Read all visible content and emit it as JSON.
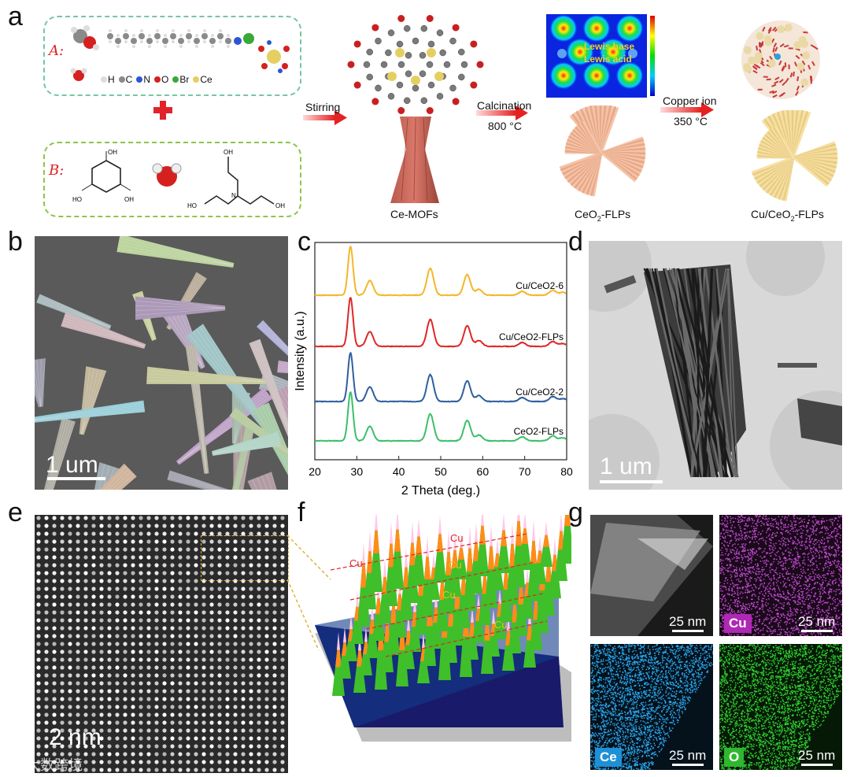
{
  "panel_labels": {
    "a": "a",
    "b": "b",
    "c": "c",
    "d": "d",
    "e": "e",
    "f": "f",
    "g": "g"
  },
  "panel_a": {
    "box_a_label": "A:",
    "box_b_label": "B:",
    "legend_elements": [
      "H",
      "C",
      "N",
      "O",
      "Br",
      "Ce"
    ],
    "legend_colors": [
      "#e8e8e8",
      "#8a8a8a",
      "#2e55d6",
      "#d62020",
      "#3aa836",
      "#e6cf62"
    ],
    "steps": [
      {
        "label": "Stirring",
        "temp": ""
      },
      {
        "label": "Calcination",
        "temp": "800 °C"
      },
      {
        "label": "Copper ion",
        "temp": "350 °C"
      }
    ],
    "products": [
      "Ce-MOFs",
      "CeO2-FLPs",
      "Cu/CeO2-FLPs"
    ],
    "map_labels": {
      "base": "Lewis base",
      "acid": "Lewis acid"
    },
    "plus_color": "#e0242a"
  },
  "panel_b": {
    "scale": "1 um"
  },
  "panel_c": {
    "chart_data": {
      "type": "line",
      "xlabel": "2 Theta (deg.)",
      "ylabel": "Intensity (a.u.)",
      "xlim": [
        20,
        80
      ],
      "xticks": [
        20,
        30,
        40,
        50,
        60,
        70,
        80
      ],
      "peaks": [
        28.5,
        33.1,
        47.5,
        56.3,
        59.1,
        69.4,
        76.7,
        79.1
      ],
      "series": [
        {
          "name": "Cu/CeO2-6",
          "color": "#f2b72a",
          "offset": 3
        },
        {
          "name": "Cu/CeO2-FLPs",
          "color": "#e02626",
          "offset": 2
        },
        {
          "name": "Cu/CeO2-2",
          "color": "#2f5f9e",
          "offset": 1
        },
        {
          "name": "CeO2-FLPs",
          "color": "#3cbf6a",
          "offset": 0
        }
      ]
    }
  },
  "panel_d": {
    "scale": "1 um"
  },
  "panel_e": {
    "scale": "2 nm"
  },
  "panel_f": {
    "cu_labels": [
      "Cu",
      "Cu",
      "Cu",
      "Cu",
      "Cu"
    ]
  },
  "panel_g": {
    "tiles": [
      {
        "label": "",
        "scale": "25 nm",
        "color": "#888888"
      },
      {
        "label": "Cu",
        "scale": "25 nm",
        "color": "#b028b5"
      },
      {
        "label": "Ce",
        "scale": "25 nm",
        "color": "#1e90d6"
      },
      {
        "label": "O",
        "scale": "25 nm",
        "color": "#2fb82f"
      }
    ]
  },
  "watermark": "大数跨境"
}
